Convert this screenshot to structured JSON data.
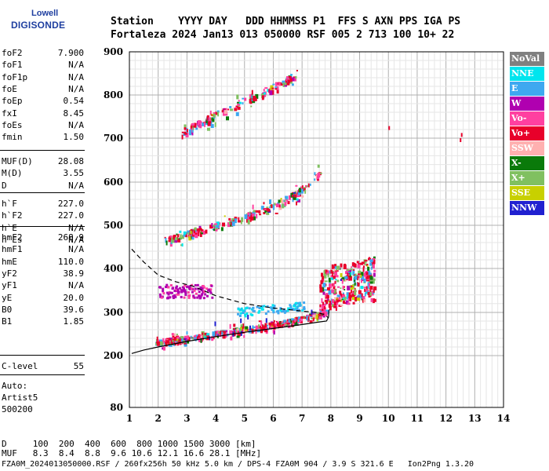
{
  "logo": {
    "brand_top": "Lowell",
    "brand_main": "DIGISONDE"
  },
  "header": {
    "row1": "Station    YYYY DAY   DDD HHMMSS P1  FFS S AXN PPS IGA PS",
    "row2": "Fortaleza 2024 Jan13 013 050000 RSF 005 2 713 100 10+ 22"
  },
  "params_a": [
    {
      "name": "foF2",
      "value": "7.900"
    },
    {
      "name": "foF1",
      "value": "N/A"
    },
    {
      "name": "foF1p",
      "value": "N/A"
    },
    {
      "name": "foE",
      "value": "N/A"
    },
    {
      "name": "foEp",
      "value": "0.54"
    },
    {
      "name": "fxI",
      "value": "8.45"
    },
    {
      "name": "foEs",
      "value": "N/A"
    },
    {
      "name": "fmin",
      "value": "1.50"
    }
  ],
  "params_b": [
    {
      "name": "MUF(D)",
      "value": "28.08"
    },
    {
      "name": "M(D)",
      "value": "3.55"
    },
    {
      "name": "D",
      "value": "N/A"
    }
  ],
  "params_c": [
    {
      "name": "h`F",
      "value": "227.0"
    },
    {
      "name": "h`F2",
      "value": "227.0"
    },
    {
      "name": "h`E",
      "value": "N/A"
    },
    {
      "name": "h`Es",
      "value": "N/A"
    }
  ],
  "params_d": [
    {
      "name": "hmF2",
      "value": "268.9"
    },
    {
      "name": "hmF1",
      "value": "N/A"
    },
    {
      "name": "hmE",
      "value": "110.0"
    },
    {
      "name": "yF2",
      "value": "38.9"
    },
    {
      "name": "yF1",
      "value": "N/A"
    },
    {
      "name": "yE",
      "value": "20.0"
    },
    {
      "name": "B0",
      "value": "39.6"
    },
    {
      "name": "B1",
      "value": "1.85"
    }
  ],
  "params_e": [
    {
      "name": "C-level",
      "value": "55"
    }
  ],
  "auto": {
    "line1": "Auto:",
    "line2": "Artist5",
    "line3": "500200"
  },
  "footer": {
    "row_d": "D     100  200  400  600  800 1000 1500 3000 [km]",
    "row_muf": "MUF   8.3  8.4  8.8  9.6 10.6 12.1 16.6 28.1 [MHz]",
    "row_info": "FZA0M_2024013050000.RSF / 260fx256h 50 kHz 5.0 km / DPS-4 FZA0M 904 / 3.9 S 321.6 E   Ion2Png 1.3.20"
  },
  "legend": [
    {
      "label": "NoVal",
      "bg": "#808080",
      "fg": "#ffffff"
    },
    {
      "label": "NNE",
      "bg": "#00e5ee",
      "fg": "#ffffff"
    },
    {
      "label": "E",
      "bg": "#3ea8f0",
      "fg": "#ffffff"
    },
    {
      "label": "W",
      "bg": "#b000b0",
      "fg": "#ffffff"
    },
    {
      "label": "Vo-",
      "bg": "#ff40a0",
      "fg": "#ffffff"
    },
    {
      "label": "Vo+",
      "bg": "#e8002a",
      "fg": "#ffffff"
    },
    {
      "label": "SSW",
      "bg": "#ffb0b0",
      "fg": "#ffffff"
    },
    {
      "label": "X-",
      "bg": "#0a7a0a",
      "fg": "#ffffff"
    },
    {
      "label": "X+",
      "bg": "#80c060",
      "fg": "#ffffff"
    },
    {
      "label": "SSE",
      "bg": "#c8d000",
      "fg": "#ffffff"
    },
    {
      "label": "NNW",
      "bg": "#2020d0",
      "fg": "#ffffff"
    }
  ],
  "chart_data": {
    "type": "scatter",
    "title": "",
    "xlabel": "",
    "ylabel": "",
    "xlim": [
      1,
      14
    ],
    "ylim": [
      80,
      900
    ],
    "x_ticks": [
      1,
      2,
      3,
      4,
      5,
      6,
      7,
      8,
      9,
      10,
      11,
      12,
      13,
      14
    ],
    "y_ticks": [
      80,
      200,
      300,
      400,
      500,
      600,
      700,
      800,
      900
    ],
    "grid": true,
    "legend_position": "right",
    "traces": [
      {
        "name": "F2 trace (1st hop)",
        "points": [
          [
            1.9,
            232
          ],
          [
            2.5,
            238
          ],
          [
            3,
            242
          ],
          [
            3.5,
            248
          ],
          [
            4,
            252
          ],
          [
            4.5,
            258
          ],
          [
            5,
            262
          ],
          [
            5.5,
            268
          ],
          [
            6,
            273
          ],
          [
            6.5,
            280
          ],
          [
            7,
            287
          ],
          [
            7.5,
            296
          ],
          [
            7.8,
            306
          ]
        ]
      },
      {
        "name": "F2 2nd hop",
        "points": [
          [
            2.2,
            465
          ],
          [
            2.8,
            478
          ],
          [
            3.4,
            490
          ],
          [
            4,
            500
          ],
          [
            4.6,
            512
          ],
          [
            5.2,
            525
          ],
          [
            5.8,
            540
          ],
          [
            6.4,
            560
          ],
          [
            7,
            585
          ],
          [
            7.4,
            610
          ],
          [
            7.6,
            625
          ]
        ]
      },
      {
        "name": "F2 3rd hop",
        "points": [
          [
            2.8,
            715
          ],
          [
            3.4,
            735
          ],
          [
            4,
            755
          ],
          [
            4.6,
            775
          ],
          [
            5.2,
            795
          ],
          [
            5.8,
            815
          ],
          [
            6.4,
            835
          ],
          [
            6.9,
            855
          ]
        ]
      },
      {
        "name": "spread F",
        "points": [
          [
            7.6,
            340
          ],
          [
            8,
            360
          ],
          [
            8.5,
            370
          ],
          [
            9,
            375
          ],
          [
            9.5,
            380
          ]
        ]
      }
    ],
    "profile_solid": [
      [
        1.08,
        205
      ],
      [
        1.5,
        213
      ],
      [
        2,
        220
      ],
      [
        3,
        233
      ],
      [
        4,
        244
      ],
      [
        5,
        254
      ],
      [
        6,
        263
      ],
      [
        7,
        272
      ],
      [
        7.6,
        278
      ],
      [
        7.85,
        280
      ],
      [
        7.92,
        289
      ],
      [
        7.94,
        306
      ]
    ],
    "profile_dashed": [
      [
        1.08,
        445
      ],
      [
        1.5,
        415
      ],
      [
        2,
        385
      ],
      [
        2.6,
        370
      ],
      [
        3.2,
        360
      ],
      [
        4,
        338
      ],
      [
        5,
        320
      ],
      [
        6,
        310
      ],
      [
        7,
        303
      ],
      [
        7.5,
        300
      ],
      [
        7.8,
        295
      ],
      [
        7.9,
        288
      ]
    ]
  }
}
